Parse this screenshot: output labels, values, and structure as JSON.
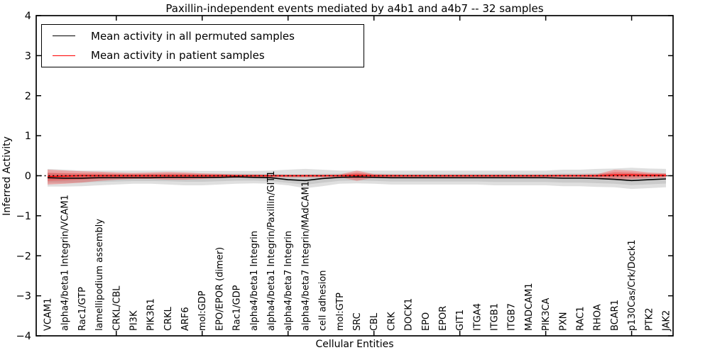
{
  "title": "Paxillin-independent events mediated by a4b1 and a4b7 -- 32 samples",
  "legend": {
    "items": [
      {
        "label": "Mean activity in all permuted samples",
        "color": "#000000"
      },
      {
        "label": "Mean activity in patient samples",
        "color": "#ff0000"
      }
    ]
  },
  "axes": {
    "ylabel": "Inferred Activity",
    "xlabel": "Cellular Entities",
    "ylim": [
      -4,
      4
    ],
    "ytick_labels": [
      "4",
      "3",
      "2",
      "1",
      "0",
      "−1",
      "−2",
      "−3",
      "−4"
    ],
    "ytick_values": [
      4,
      3,
      2,
      1,
      0,
      -1,
      -2,
      -3,
      -4
    ],
    "grid": false,
    "zero_reference_line": "dotted black at y=0"
  },
  "chart_data": {
    "type": "line",
    "title": "Paxillin-independent events mediated by a4b1 and a4b7 -- 32 samples",
    "xlabel": "Cellular Entities",
    "ylabel": "Inferred Activity",
    "ylim": [
      -4,
      4
    ],
    "legend_position": "upper left",
    "x_tick_mark_indices": [
      4,
      9,
      14,
      19,
      24,
      29,
      34
    ],
    "categories": [
      "VCAM1",
      "alpha4/beta1 Integrin/VCAM1",
      "Rac1/GTP",
      "lamellipodium assembly",
      "CRKL/CBL",
      "PI3K",
      "PIK3R1",
      "CRKL",
      "ARF6",
      "mol:GDP",
      "EPO/EPOR (dimer)",
      "Rac1/GDP",
      "alpha4/beta1 Integrin",
      "alpha4/beta1 Integrin/Paxillin/GIT1",
      "alpha4/beta7 Integrin",
      "alpha4/beta7 Integrin/MAdCAM1",
      "cell adhesion",
      "mol:GTP",
      "SRC",
      "CBL",
      "CRK",
      "DOCK1",
      "EPO",
      "EPOR",
      "GIT1",
      "ITGA4",
      "ITGB1",
      "ITGB7",
      "MADCAM1",
      "PIK3CA",
      "PXN",
      "RAC1",
      "RHOA",
      "BCAR1",
      "p130Cas/Crk/Dock1",
      "PTK2",
      "JAK2"
    ],
    "series": [
      {
        "name": "Mean activity in all permuted samples",
        "color": "#000000",
        "band_color": "#808080",
        "values": [
          -0.05,
          -0.06,
          -0.06,
          -0.05,
          -0.05,
          -0.05,
          -0.05,
          -0.04,
          -0.04,
          -0.04,
          -0.04,
          -0.03,
          -0.04,
          -0.05,
          -0.1,
          -0.12,
          -0.07,
          -0.04,
          -0.03,
          -0.04,
          -0.05,
          -0.05,
          -0.05,
          -0.05,
          -0.05,
          -0.05,
          -0.05,
          -0.05,
          -0.05,
          -0.05,
          -0.06,
          -0.06,
          -0.07,
          -0.09,
          -0.12,
          -0.1,
          -0.08
        ],
        "band_high": [
          0.17,
          0.15,
          0.13,
          0.13,
          0.13,
          0.13,
          0.13,
          0.13,
          0.13,
          0.12,
          0.12,
          0.12,
          0.12,
          0.13,
          0.15,
          0.17,
          0.15,
          0.13,
          0.13,
          0.13,
          0.13,
          0.13,
          0.13,
          0.13,
          0.13,
          0.13,
          0.13,
          0.13,
          0.13,
          0.13,
          0.15,
          0.15,
          0.17,
          0.18,
          0.2,
          0.18,
          0.17
        ],
        "band_low": [
          -0.27,
          -0.27,
          -0.26,
          -0.24,
          -0.22,
          -0.2,
          -0.2,
          -0.22,
          -0.24,
          -0.24,
          -0.22,
          -0.2,
          -0.19,
          -0.2,
          -0.24,
          -0.31,
          -0.26,
          -0.2,
          -0.19,
          -0.2,
          -0.22,
          -0.22,
          -0.22,
          -0.22,
          -0.22,
          -0.22,
          -0.24,
          -0.24,
          -0.24,
          -0.24,
          -0.26,
          -0.26,
          -0.28,
          -0.29,
          -0.33,
          -0.31,
          -0.29
        ]
      },
      {
        "name": "Mean activity in patient samples",
        "color": "#ff0000",
        "band_color": "#ff0000",
        "values": [
          -0.02,
          -0.01,
          0,
          0,
          0,
          0,
          0,
          0,
          0,
          0,
          0,
          0,
          0,
          0,
          0,
          0,
          0,
          0,
          0.01,
          0,
          0,
          0,
          0,
          0,
          0,
          0,
          0,
          0,
          0,
          0,
          0,
          0,
          0,
          0.02,
          0.02,
          0.01,
          0.01
        ],
        "band_high": [
          0.15,
          0.13,
          0.11,
          0.1,
          0.08,
          0.07,
          0.08,
          0.09,
          0.08,
          0.06,
          0.05,
          0.03,
          0.03,
          0.025,
          0.025,
          0.025,
          0.025,
          0.03,
          0.13,
          0.04,
          0.03,
          0.025,
          0.025,
          0.025,
          0.025,
          0.025,
          0.025,
          0.025,
          0.025,
          0.025,
          0.03,
          0.03,
          0.04,
          0.15,
          0.13,
          0.08,
          0.06
        ],
        "band_low": [
          -0.22,
          -0.2,
          -0.17,
          -0.13,
          -0.1,
          -0.08,
          -0.08,
          -0.1,
          -0.1,
          -0.08,
          -0.06,
          -0.05,
          -0.04,
          -0.04,
          -0.04,
          -0.04,
          -0.04,
          -0.03,
          -0.13,
          -0.05,
          -0.04,
          -0.035,
          -0.035,
          -0.035,
          -0.035,
          -0.035,
          -0.035,
          -0.035,
          -0.035,
          -0.035,
          -0.04,
          -0.04,
          -0.05,
          -0.09,
          -0.09,
          -0.06,
          -0.05
        ]
      }
    ]
  }
}
